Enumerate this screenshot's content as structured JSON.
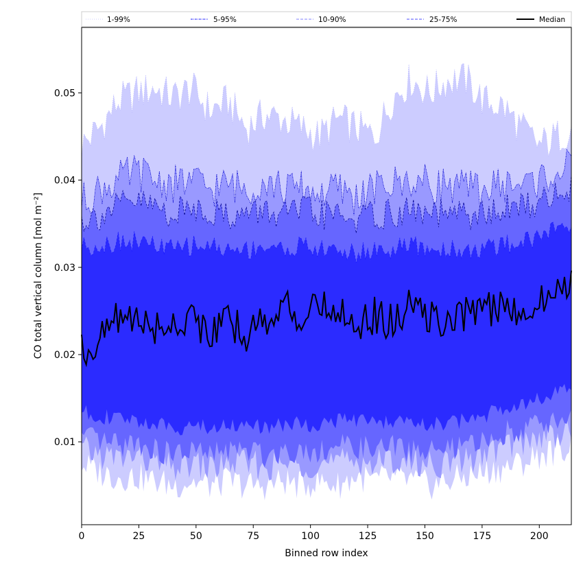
{
  "chart_data": {
    "type": "area",
    "xlabel": "Binned row index",
    "ylabel": "CO total vertical column [mol m⁻²]",
    "xlim": [
      0,
      214
    ],
    "ylim": [
      0.0005,
      0.0575
    ],
    "x_ticks": [
      0,
      25,
      50,
      75,
      100,
      125,
      150,
      175,
      200
    ],
    "y_ticks": [
      0.01,
      0.02,
      0.03,
      0.04,
      0.05
    ],
    "y_tick_labels": [
      "0.01",
      "0.02",
      "0.03",
      "0.04",
      "0.05"
    ],
    "grid": false,
    "legend_position": "top",
    "legend": [
      {
        "label": "1-99%",
        "style": "dotted",
        "color": "#ccccff"
      },
      {
        "label": "5-95%",
        "style": "dashdot",
        "color": "#1a1aff"
      },
      {
        "label": "10-90%",
        "style": "dashed",
        "color": "#8080ff"
      },
      {
        "label": "25-75%",
        "style": "dashed",
        "color": "#4d4dff"
      },
      {
        "label": "Median",
        "style": "solid",
        "color": "#000000"
      }
    ],
    "colors": {
      "band_1_99": "#ccccff",
      "band_5_95": "#9999ff",
      "band_10_90": "#6666ff",
      "band_25_75": "#2b2bff",
      "median": "#000000"
    },
    "x": [
      0,
      8,
      16,
      24,
      32,
      40,
      48,
      56,
      64,
      72,
      80,
      88,
      96,
      104,
      112,
      120,
      128,
      136,
      144,
      152,
      160,
      168,
      176,
      184,
      192,
      200,
      208,
      214
    ],
    "series": [
      {
        "name": "Median",
        "values": [
          0.0205,
          0.0215,
          0.0245,
          0.024,
          0.023,
          0.0235,
          0.0245,
          0.0225,
          0.0235,
          0.0225,
          0.024,
          0.0255,
          0.0245,
          0.025,
          0.0255,
          0.0235,
          0.0245,
          0.0235,
          0.0255,
          0.0245,
          0.023,
          0.025,
          0.0255,
          0.025,
          0.0255,
          0.026,
          0.027,
          0.029
        ]
      },
      {
        "name": "1-99%",
        "lower": [
          0.0075,
          0.0065,
          0.006,
          0.006,
          0.0055,
          0.005,
          0.0055,
          0.005,
          0.0055,
          0.005,
          0.005,
          0.0055,
          0.005,
          0.0055,
          0.005,
          0.006,
          0.0055,
          0.006,
          0.0055,
          0.005,
          0.0055,
          0.006,
          0.0065,
          0.007,
          0.0075,
          0.0085,
          0.009,
          0.0095
        ],
        "upper": [
          0.044,
          0.046,
          0.049,
          0.05,
          0.0505,
          0.0495,
          0.0505,
          0.048,
          0.049,
          0.046,
          0.0475,
          0.047,
          0.046,
          0.045,
          0.047,
          0.046,
          0.045,
          0.0495,
          0.0515,
          0.05,
          0.0515,
          0.0515,
          0.049,
          0.0485,
          0.046,
          0.044,
          0.045,
          0.046
        ]
      },
      {
        "name": "5-95%",
        "lower": [
          0.009,
          0.0085,
          0.008,
          0.0085,
          0.0075,
          0.007,
          0.0075,
          0.007,
          0.0075,
          0.0075,
          0.007,
          0.0075,
          0.0075,
          0.0075,
          0.0075,
          0.008,
          0.0075,
          0.008,
          0.0075,
          0.0075,
          0.0075,
          0.008,
          0.0085,
          0.0095,
          0.01,
          0.0105,
          0.011,
          0.0115
        ],
        "upper": [
          0.0375,
          0.039,
          0.04,
          0.041,
          0.04,
          0.0395,
          0.04,
          0.039,
          0.0395,
          0.039,
          0.04,
          0.039,
          0.039,
          0.0385,
          0.039,
          0.038,
          0.039,
          0.0395,
          0.04,
          0.0395,
          0.0395,
          0.039,
          0.039,
          0.0395,
          0.0395,
          0.04,
          0.041,
          0.0415
        ]
      },
      {
        "name": "10-90%",
        "lower": [
          0.0105,
          0.01,
          0.0095,
          0.01,
          0.009,
          0.0085,
          0.009,
          0.0085,
          0.009,
          0.009,
          0.0085,
          0.009,
          0.009,
          0.009,
          0.0095,
          0.0095,
          0.009,
          0.0095,
          0.009,
          0.009,
          0.009,
          0.0095,
          0.01,
          0.011,
          0.0115,
          0.012,
          0.0125,
          0.013
        ],
        "upper": [
          0.0355,
          0.036,
          0.037,
          0.0375,
          0.037,
          0.036,
          0.037,
          0.0365,
          0.036,
          0.036,
          0.0365,
          0.036,
          0.0365,
          0.036,
          0.036,
          0.0355,
          0.036,
          0.036,
          0.0365,
          0.036,
          0.036,
          0.036,
          0.036,
          0.0365,
          0.037,
          0.0375,
          0.0385,
          0.039
        ]
      },
      {
        "name": "25-75%",
        "lower": [
          0.0135,
          0.013,
          0.0125,
          0.0125,
          0.012,
          0.0115,
          0.012,
          0.0115,
          0.012,
          0.012,
          0.0115,
          0.012,
          0.012,
          0.012,
          0.0125,
          0.0125,
          0.012,
          0.0125,
          0.012,
          0.012,
          0.012,
          0.0125,
          0.013,
          0.014,
          0.0145,
          0.015,
          0.0155,
          0.016
        ],
        "upper": [
          0.0325,
          0.0325,
          0.033,
          0.033,
          0.0325,
          0.032,
          0.0325,
          0.0325,
          0.032,
          0.032,
          0.0325,
          0.032,
          0.0325,
          0.032,
          0.032,
          0.0315,
          0.032,
          0.032,
          0.0325,
          0.032,
          0.032,
          0.032,
          0.032,
          0.0325,
          0.033,
          0.0335,
          0.0345,
          0.035
        ]
      }
    ]
  }
}
